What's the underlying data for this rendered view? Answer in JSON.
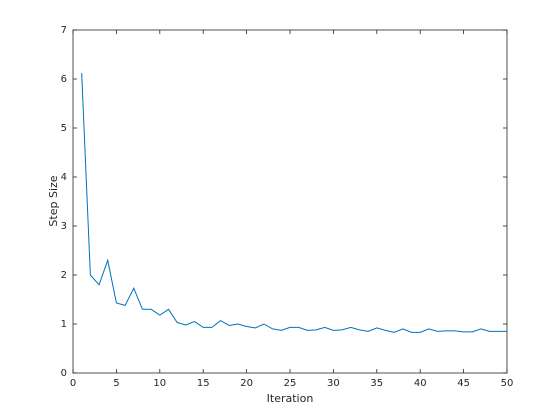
{
  "chart_data": {
    "type": "line",
    "x_label": "Iteration",
    "y_label": "Step Size",
    "x": [
      1,
      2,
      3,
      4,
      5,
      6,
      7,
      8,
      9,
      10,
      11,
      12,
      13,
      14,
      15,
      16,
      17,
      18,
      19,
      20,
      21,
      22,
      23,
      24,
      25,
      26,
      27,
      28,
      29,
      30,
      31,
      32,
      33,
      34,
      35,
      36,
      37,
      38,
      39,
      40,
      41,
      42,
      43,
      44,
      45,
      46,
      47,
      48,
      49,
      50
    ],
    "series": [
      {
        "color": "#0072bd",
        "values": [
          6.12,
          2.0,
          1.8,
          2.3,
          1.43,
          1.38,
          1.73,
          1.3,
          1.3,
          1.18,
          1.3,
          1.03,
          0.98,
          1.05,
          0.93,
          0.93,
          1.07,
          0.97,
          1.0,
          0.95,
          0.92,
          1.0,
          0.9,
          0.87,
          0.93,
          0.93,
          0.87,
          0.88,
          0.93,
          0.87,
          0.88,
          0.93,
          0.88,
          0.85,
          0.92,
          0.87,
          0.83,
          0.9,
          0.83,
          0.83,
          0.9,
          0.85,
          0.86,
          0.86,
          0.84,
          0.84,
          0.9,
          0.85,
          0.85,
          0.85
        ]
      }
    ],
    "xlim": [
      0,
      50
    ],
    "ylim": [
      0,
      7
    ],
    "xticks": [
      0,
      5,
      10,
      15,
      20,
      25,
      30,
      35,
      40,
      45,
      50
    ],
    "yticks": [
      0,
      1,
      2,
      3,
      4,
      5,
      6,
      7
    ],
    "grid": false
  }
}
